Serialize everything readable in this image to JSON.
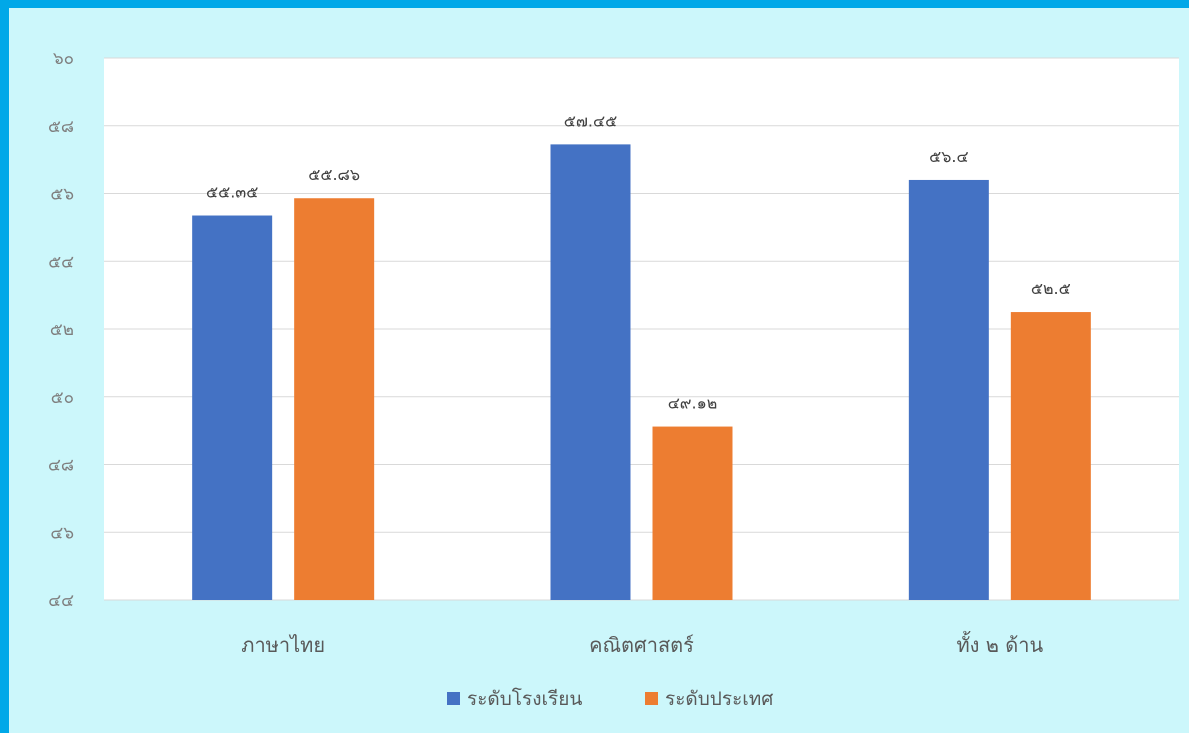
{
  "chart_data": {
    "type": "bar",
    "title": "",
    "xlabel": "",
    "ylabel": "",
    "categories": [
      "ภาษาไทย",
      "คณิตศาสตร์",
      "ทั้ง ๒ ด้าน"
    ],
    "series": [
      {
        "name": "ระดับโรงเรียน",
        "color": "#4472c4",
        "values": [
          55.35,
          57.45,
          56.4
        ],
        "labels": [
          "๕๕.๓๕",
          "๕๗.๔๕",
          "๕๖.๔"
        ]
      },
      {
        "name": "ระดับประเทศ",
        "color": "#ed7d31",
        "values": [
          55.86,
          49.12,
          52.5
        ],
        "labels": [
          "๕๕.๘๖",
          "๔๙.๑๒",
          "๕๒.๕"
        ]
      }
    ],
    "ylim": [
      44,
      60
    ],
    "yticks": [
      44,
      46,
      48,
      50,
      52,
      54,
      56,
      58,
      60
    ],
    "ytick_labels": [
      "๔๔",
      "๔๖",
      "๔๘",
      "๕๐",
      "๕๒",
      "๕๔",
      "๕๖",
      "๕๘",
      "๖๐"
    ],
    "grid": true,
    "legend_position": "bottom",
    "colors": {
      "frame_border": "#00a8e8",
      "frame_background": "#ccf7fb",
      "plot_background": "#ffffff",
      "gridline": "#d9d9d9"
    }
  }
}
